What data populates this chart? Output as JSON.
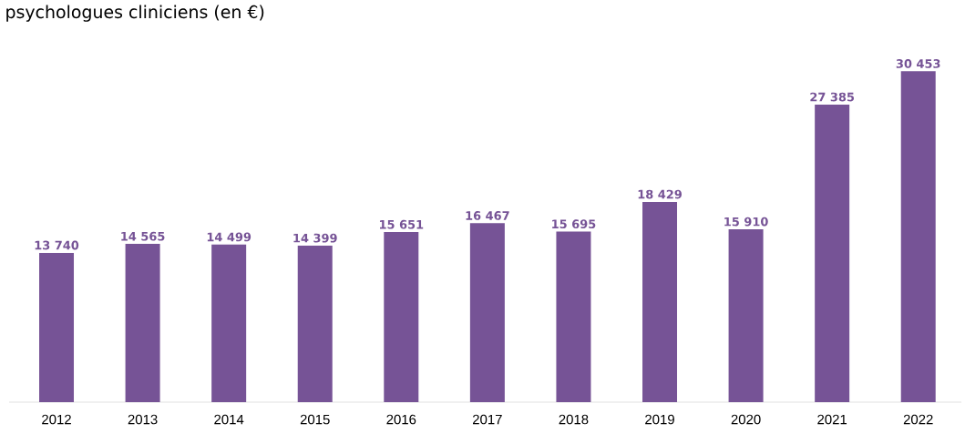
{
  "chart_data": {
    "type": "bar",
    "title": "psychologues cliniciens (en €)",
    "categories": [
      "2012",
      "2013",
      "2014",
      "2015",
      "2016",
      "2017",
      "2018",
      "2019",
      "2020",
      "2021",
      "2022"
    ],
    "values": [
      13740,
      14565,
      14499,
      14399,
      15651,
      16467,
      15695,
      18429,
      15910,
      27385,
      30453
    ],
    "value_labels": [
      "13 740",
      "14 565",
      "14 499",
      "14 399",
      "15 651",
      "16 467",
      "15 695",
      "18 429",
      "15 910",
      "27 385",
      "30 453"
    ],
    "color": "#765396"
  }
}
